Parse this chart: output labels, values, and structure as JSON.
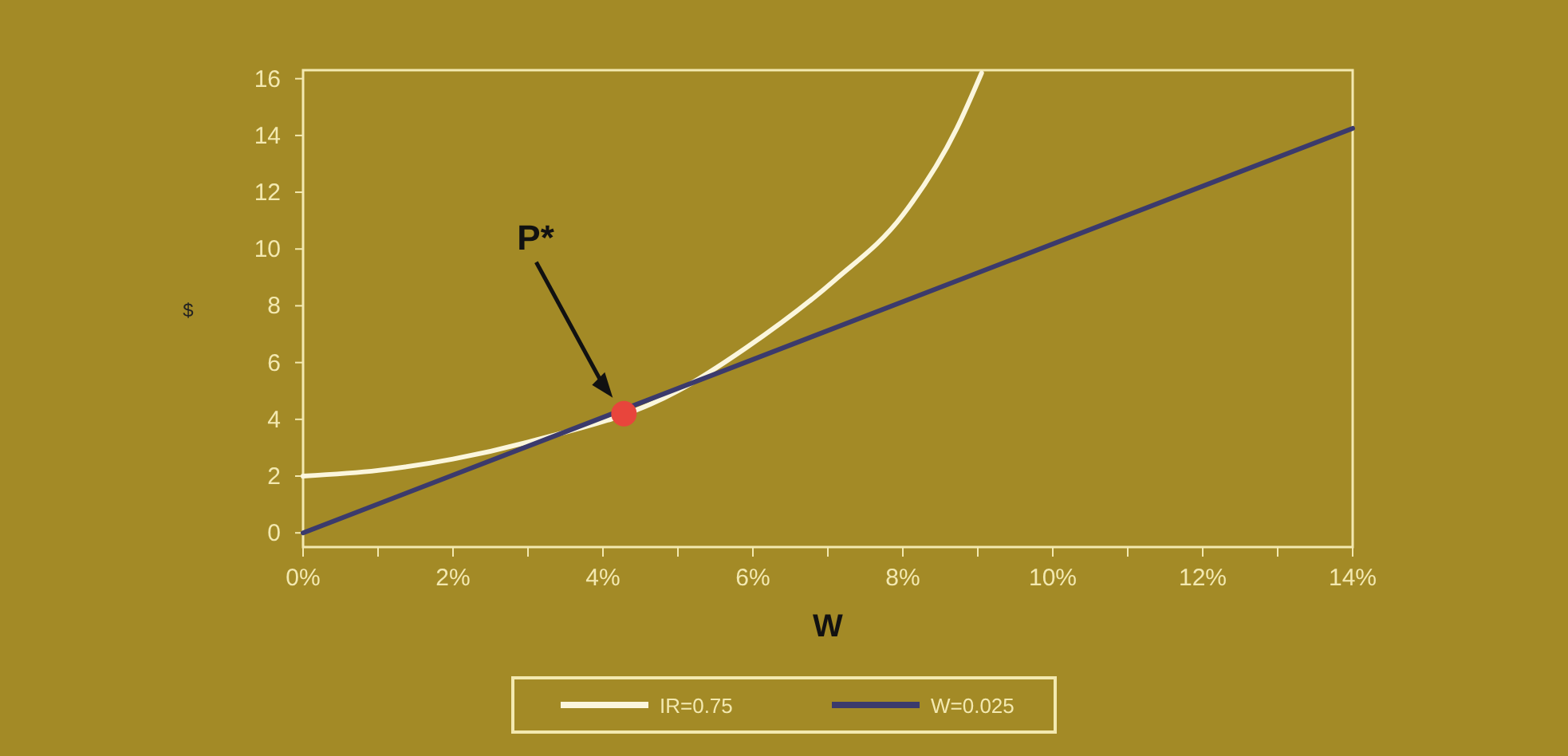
{
  "chart_data": {
    "type": "line",
    "xlabel": "W",
    "ylabel": "$",
    "xlim": [
      0,
      14
    ],
    "ylim": [
      -0.5,
      16.3
    ],
    "xticks": [
      {
        "value": 0,
        "label": "0%"
      },
      {
        "value": 1,
        "label": null
      },
      {
        "value": 2,
        "label": "2%"
      },
      {
        "value": 3,
        "label": null
      },
      {
        "value": 4,
        "label": "4%"
      },
      {
        "value": 5,
        "label": null
      },
      {
        "value": 6,
        "label": "6%"
      },
      {
        "value": 7,
        "label": null
      },
      {
        "value": 8,
        "label": "8%"
      },
      {
        "value": 9,
        "label": null
      },
      {
        "value": 10,
        "label": "10%"
      },
      {
        "value": 11,
        "label": null
      },
      {
        "value": 12,
        "label": "12%"
      },
      {
        "value": 13,
        "label": null
      },
      {
        "value": 14,
        "label": "14%"
      }
    ],
    "yticks": [
      0,
      2,
      4,
      6,
      8,
      10,
      12,
      14,
      16
    ],
    "grid": false,
    "legend": "bottom",
    "marker": "none",
    "line_style": "solid",
    "series": [
      {
        "name": "IR=0.75",
        "color": "#fbf6dc",
        "x": [
          0,
          1,
          2,
          3,
          5,
          5.9,
          7.09,
          8,
          8.72,
          9.05
        ],
        "values": [
          2.0,
          2.2,
          2.6,
          3.2,
          5.0,
          6.5,
          8.9,
          11.2,
          14.25,
          16.2
        ]
      },
      {
        "name": "W=0.025",
        "color": "#3b3a6c",
        "x": [
          0,
          14
        ],
        "values": [
          0,
          14.25
        ]
      },
      {
        "type": "scatter",
        "marker": "circle",
        "color": "#e8453c",
        "x": [
          4.28
        ],
        "values": [
          4.2
        ]
      }
    ],
    "annotations": [
      "P*"
    ]
  }
}
